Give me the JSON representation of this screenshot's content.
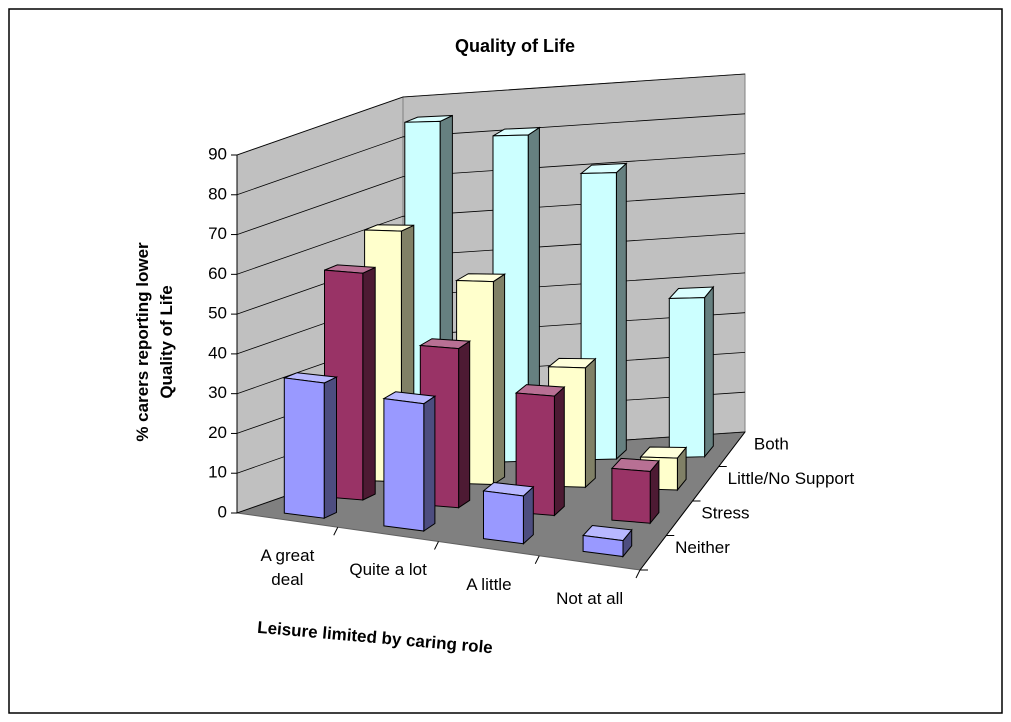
{
  "chart_data": {
    "type": "bar3d",
    "title": "Quality of Life",
    "x_label": "Leisure limited by caring role",
    "y_label": "% carers reporting lower Quality of Life",
    "categories": [
      "A great deal",
      "Quite a lot",
      "A little",
      "Not at all"
    ],
    "series": [
      {
        "name": "Neither",
        "color": "#9999ff",
        "values": [
          34,
          32,
          12,
          4
        ]
      },
      {
        "name": "Stress",
        "color": "#993366",
        "values": [
          57,
          40,
          30,
          13
        ]
      },
      {
        "name": "Little/No Support",
        "color": "#ffffcc",
        "values": [
          63,
          51,
          30,
          8
        ]
      },
      {
        "name": "Both",
        "color": "#ccffff",
        "values": [
          86,
          82,
          72,
          40
        ]
      }
    ],
    "ylim": [
      0,
      90
    ],
    "yticks": [
      0,
      10,
      20,
      30,
      40,
      50,
      60,
      70,
      80,
      90
    ],
    "grid": true
  }
}
